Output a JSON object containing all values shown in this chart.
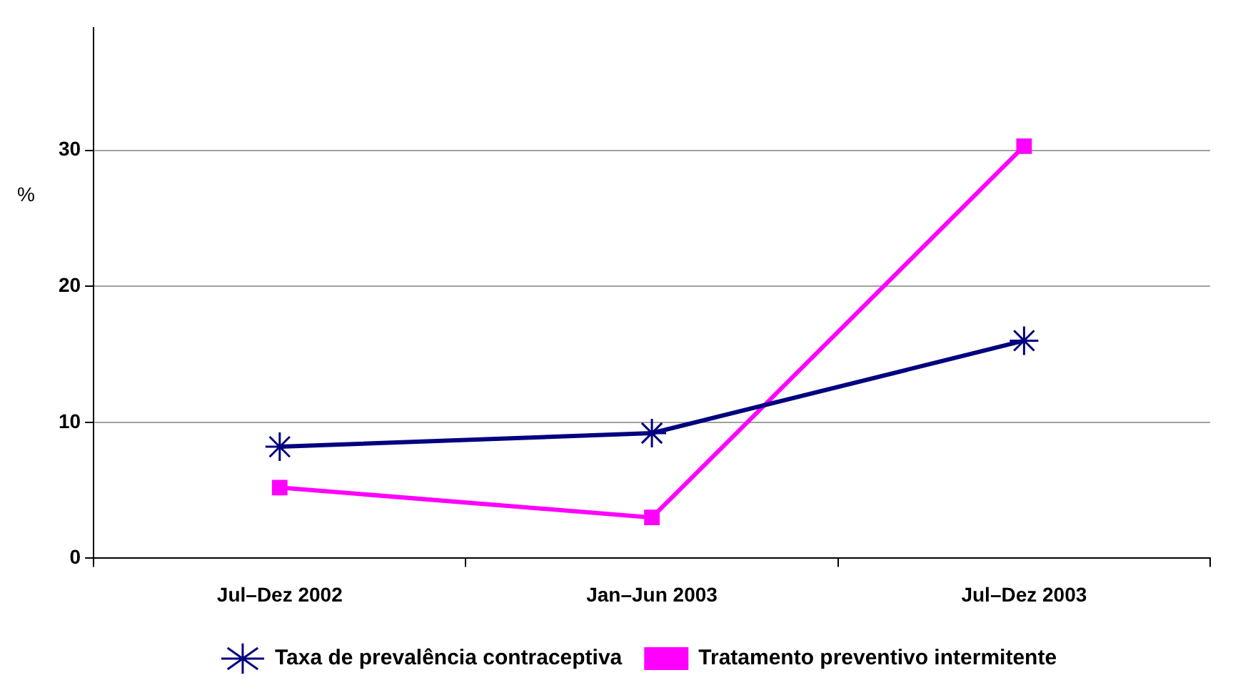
{
  "chart_data": {
    "type": "line",
    "ylabel": "%",
    "categories": [
      "Jul–Dez 2002",
      "Jan–Jun 2003",
      "Jul–Dez 2003"
    ],
    "series": [
      {
        "name": "Taxa de prevalência contraceptiva",
        "color": "#000080",
        "values": [
          8.2,
          9.2,
          16.0
        ],
        "marker": "cross"
      },
      {
        "name": "Tratamento preventivo intermitente",
        "color": "#ff00ff",
        "values": [
          5.2,
          3.0,
          30.3
        ],
        "marker": "square"
      }
    ],
    "ylim": [
      0,
      39
    ],
    "yticks": [
      0,
      10,
      20,
      30
    ],
    "grid": "y",
    "legend": "bottom",
    "line_style": "solid"
  }
}
